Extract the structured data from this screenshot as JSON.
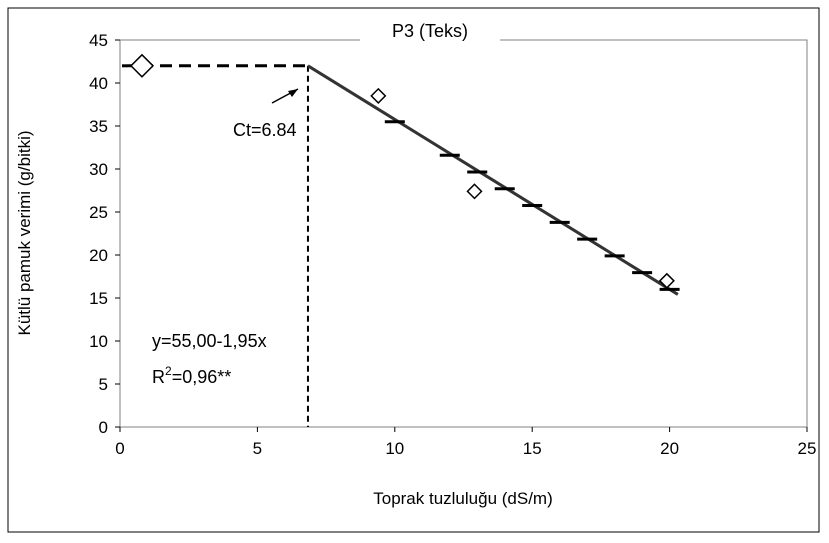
{
  "chart_data": {
    "type": "scatter",
    "title": "P3 (Teks)",
    "xlabel": "Toprak tuzluluğu (dS/m)",
    "ylabel": "Kütlü pamuk verimi (g/bitki)",
    "xlim": [
      0,
      25
    ],
    "ylim": [
      0,
      45
    ],
    "x_ticks": [
      "0",
      "5",
      "10",
      "15",
      "20",
      "25"
    ],
    "y_ticks": [
      "0",
      "5",
      "10",
      "15",
      "20",
      "25",
      "30",
      "35",
      "40",
      "45"
    ],
    "grid": false,
    "series": [
      {
        "marker": "diamond",
        "points": [
          {
            "x": 0.8,
            "y": 42.0
          },
          {
            "x": 9.4,
            "y": 38.5
          },
          {
            "x": 12.9,
            "y": 27.4
          },
          {
            "x": 19.9,
            "y": 17.0
          }
        ]
      }
    ],
    "threshold_line": {
      "x_start": 0,
      "x_end": 6.84,
      "y": 42.0
    },
    "regression": {
      "intercept": 55.0,
      "slope": -1.95,
      "x_start": 6.84,
      "x_end": 20.3,
      "tick_marks_x": [
        10,
        12,
        13,
        14,
        15,
        16,
        17,
        18,
        19,
        20
      ]
    },
    "ct_line_x": 6.84,
    "annotations": {
      "ct": "Ct=6.84",
      "equation": "y=55,00-1,95x",
      "r2_prefix": "R",
      "r2_sup": "2",
      "r2_suffix": "=0,96**"
    }
  }
}
